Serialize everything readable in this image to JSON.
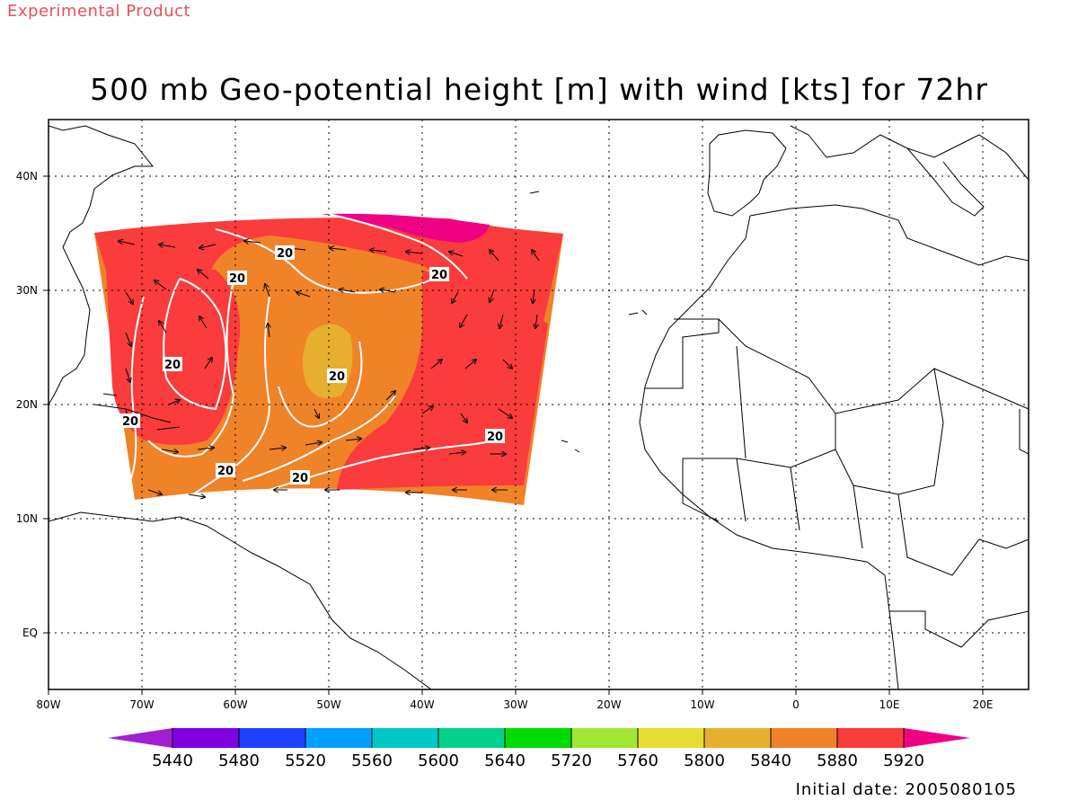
{
  "header": {
    "product_tag": "Experimental Product",
    "title": "500 mb Geo-potential height [m] with wind [kts] for 72hr",
    "initial_date": "Initial date: 2005080105"
  },
  "map": {
    "lon_range": [
      -80,
      25
    ],
    "lat_range": [
      -6,
      45
    ],
    "lon_labels": [
      "80W",
      "70W",
      "60W",
      "50W",
      "40W",
      "30W",
      "20W",
      "10W",
      "0",
      "10E",
      "20E"
    ],
    "lat_labels": [
      "40N",
      "30N",
      "20N",
      "10N",
      "EQ"
    ],
    "contour_labels": [
      "20",
      "20",
      "20",
      "20",
      "20",
      "20",
      "20",
      "20"
    ],
    "contour_line_color": "#ffffff",
    "grid_style": "dotted",
    "wind_arrows": "shown",
    "coastlines": "shown"
  },
  "colorbar": {
    "colors": [
      "#a020d0",
      "#8000e0",
      "#2040ff",
      "#00a0ff",
      "#00c8c8",
      "#00d28c",
      "#00dc00",
      "#a0e632",
      "#e6dc32",
      "#e6af2d",
      "#f08228",
      "#fa3c3c",
      "#f00082"
    ],
    "labels": [
      "5440",
      "5480",
      "5520",
      "5560",
      "5600",
      "5640",
      "5720",
      "5760",
      "5800",
      "5840",
      "5880",
      "5920"
    ]
  }
}
